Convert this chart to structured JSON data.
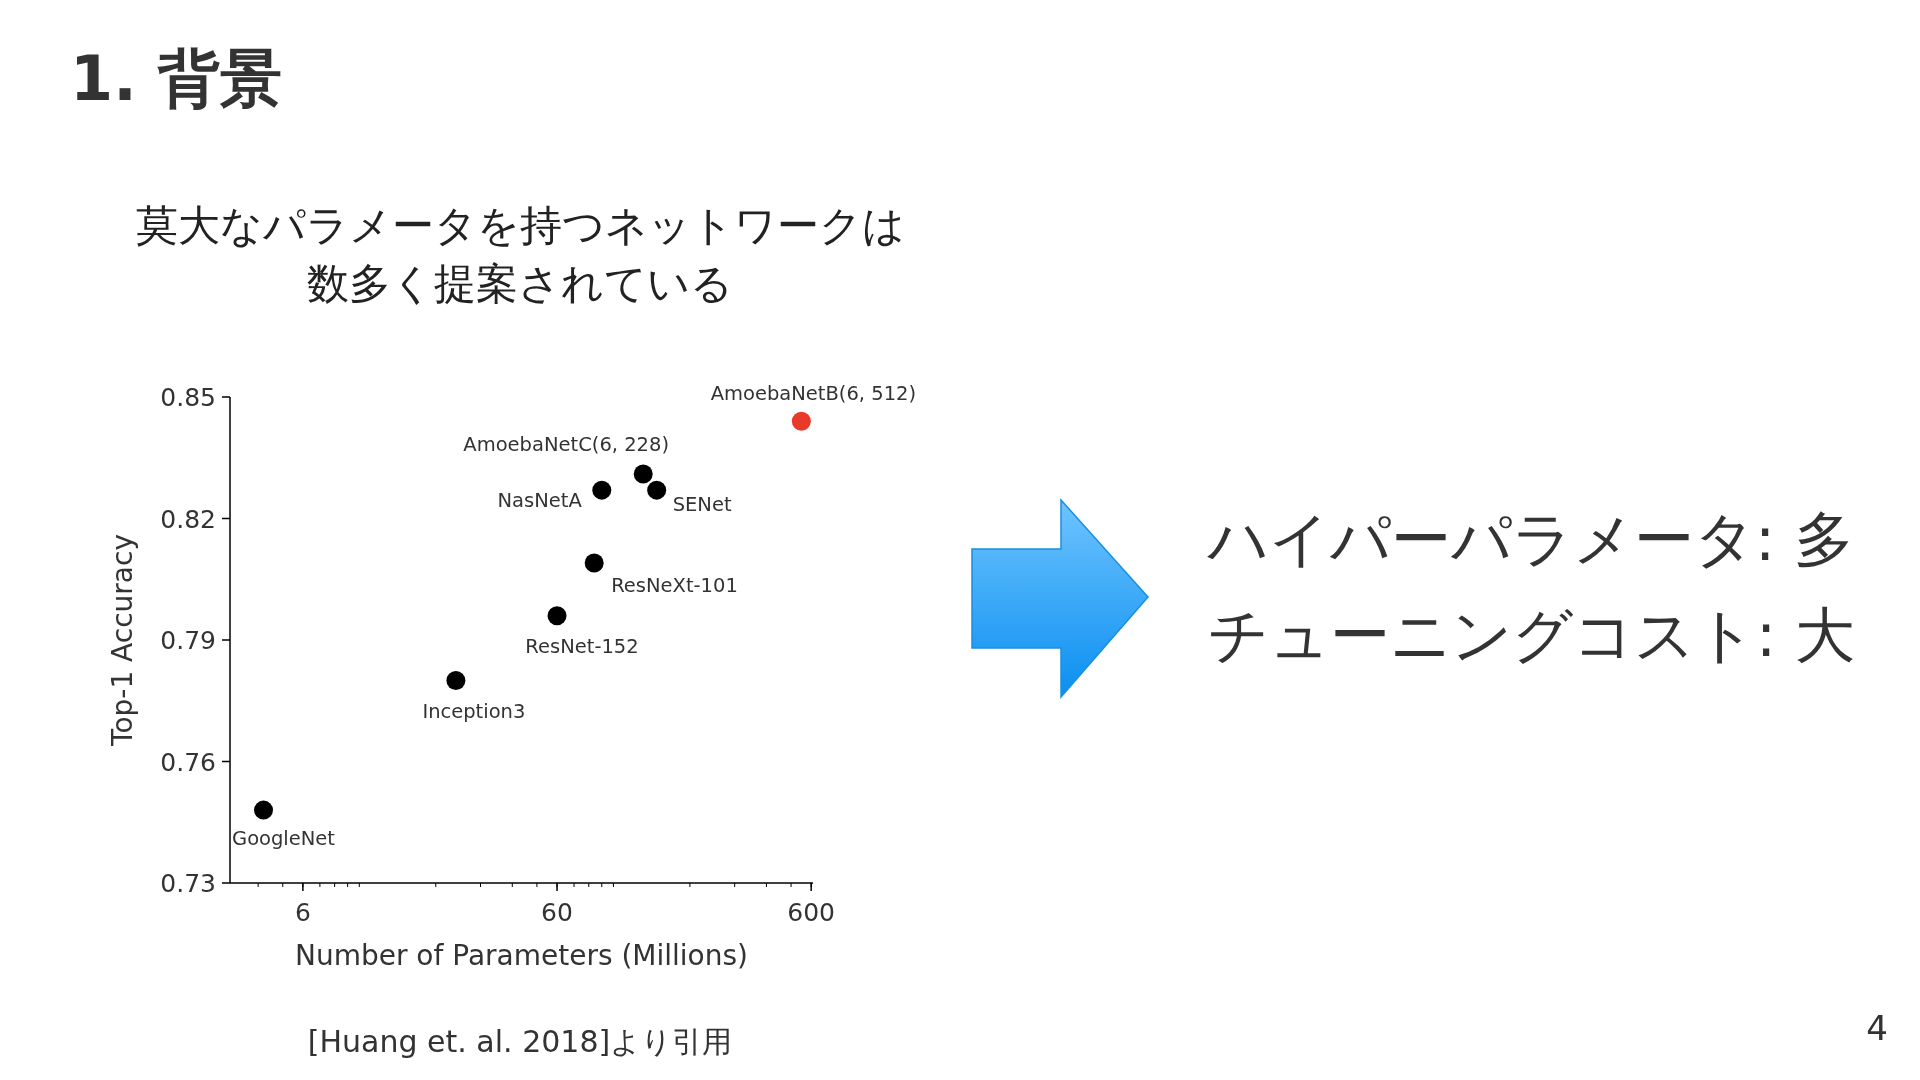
{
  "chart_data": {
    "type": "scatter",
    "title": "1. 背景",
    "subtitle": "莫大なパラメータを持つネットワークは数多く提案されている",
    "xlabel": "Number of Parameters (Millions)",
    "ylabel": "Top-1 Accuracy",
    "log": "x",
    "xlim": [
      3.1,
      610
    ],
    "xticks": [
      6,
      60,
      600
    ],
    "ylim": [
      0.73,
      0.85
    ],
    "yticks": [
      0.85,
      0.82,
      0.79,
      0.76,
      0.73
    ],
    "x": [
      4.2,
      24,
      60,
      84,
      90,
      131,
      148,
      549
    ],
    "values": [
      0.748,
      0.78,
      0.796,
      0.809,
      0.827,
      0.831,
      0.827,
      0.844
    ],
    "colors": [
      "#000000",
      "#000000",
      "#000000",
      "#000000",
      "#000000",
      "#000000",
      "#000000",
      "#e8392a"
    ],
    "marker": "circle",
    "grid": false,
    "annotations": [
      {
        "text": "GoogleNet",
        "x": 4.2,
        "y": 0.748
      },
      {
        "text": "Inception3",
        "x": 24,
        "y": 0.78
      },
      {
        "text": "ResNet-152",
        "x": 60,
        "y": 0.796
      },
      {
        "text": "ResNeXt-101",
        "x": 84,
        "y": 0.809
      },
      {
        "text": "NasNetA",
        "x": 90,
        "y": 0.827
      },
      {
        "text": "AmoebaNetC(6, 228)",
        "x": 131,
        "y": 0.831
      },
      {
        "text": "SENet",
        "x": 148,
        "y": 0.827
      },
      {
        "text": "AmoebaNetB(6, 512)",
        "x": 549,
        "y": 0.844
      },
      "ハイパーパラメータ: 多",
      "チューニングコスト: 大",
      "[Huang et. al. 2018]より引用",
      "4"
    ]
  }
}
